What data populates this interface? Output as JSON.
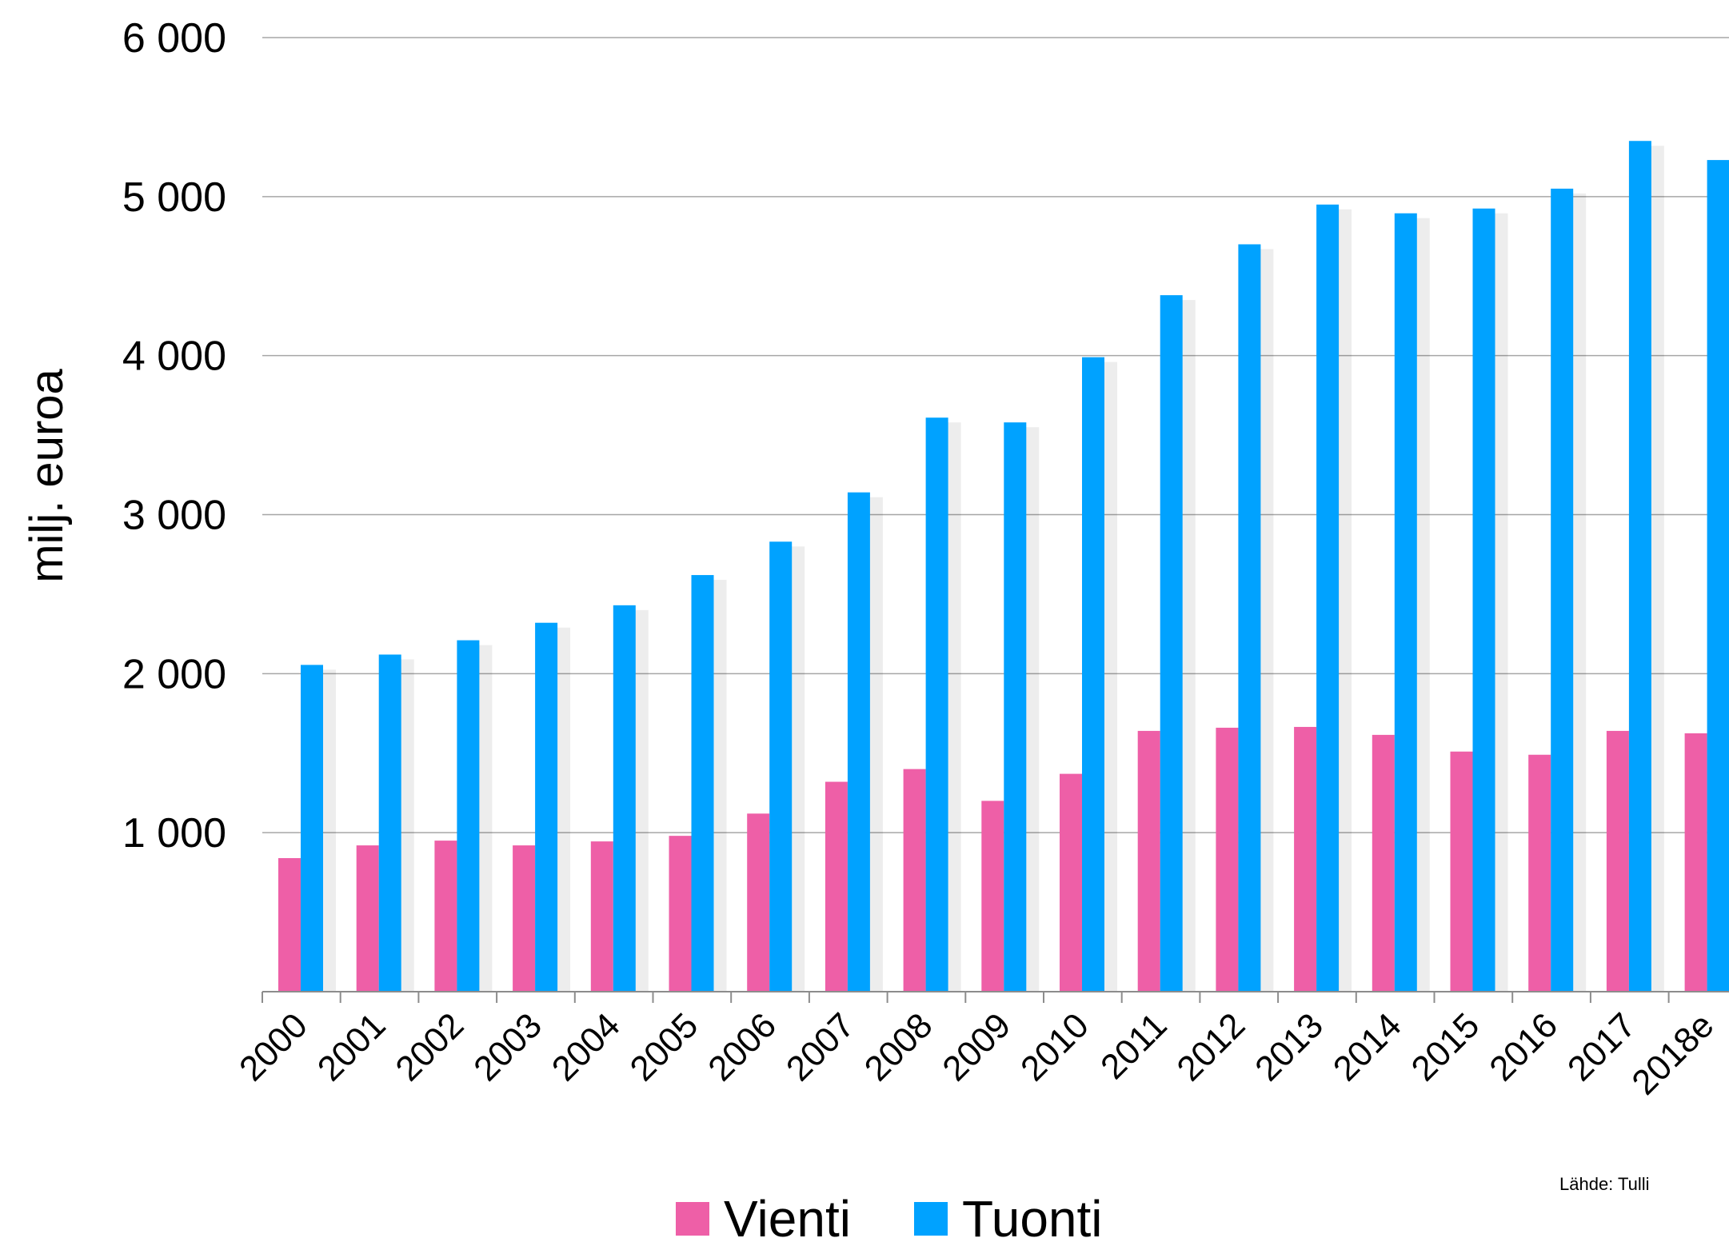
{
  "chart_data": {
    "type": "bar",
    "ylabel": "milj. euroa",
    "ylim": [
      0,
      6000
    ],
    "yticks": [
      1000,
      2000,
      3000,
      4000,
      5000,
      6000
    ],
    "ytick_labels": [
      "1 000",
      "2 000",
      "3 000",
      "4 000",
      "5 000",
      "6 000"
    ],
    "categories": [
      "2000",
      "2001",
      "2002",
      "2003",
      "2004",
      "2005",
      "2006",
      "2007",
      "2008",
      "2009",
      "2010",
      "2011",
      "2012",
      "2013",
      "2014",
      "2015",
      "2016",
      "2017",
      "2018e"
    ],
    "series": [
      {
        "name": "Vienti",
        "color": "#ee5fa7",
        "values": [
          840,
          920,
          950,
          920,
          945,
          980,
          1120,
          1320,
          1400,
          1200,
          1370,
          1640,
          1660,
          1665,
          1615,
          1510,
          1490,
          1640,
          1625
        ]
      },
      {
        "name": "Tuonti",
        "color": "#00a2ff",
        "values": [
          2055,
          2120,
          2210,
          2320,
          2430,
          2620,
          2830,
          3140,
          3610,
          3580,
          3990,
          4380,
          4700,
          4950,
          4895,
          4925,
          5050,
          5350,
          5230
        ]
      }
    ],
    "grid": true,
    "legend": "bottom",
    "source": "Lähde: Tulli"
  }
}
